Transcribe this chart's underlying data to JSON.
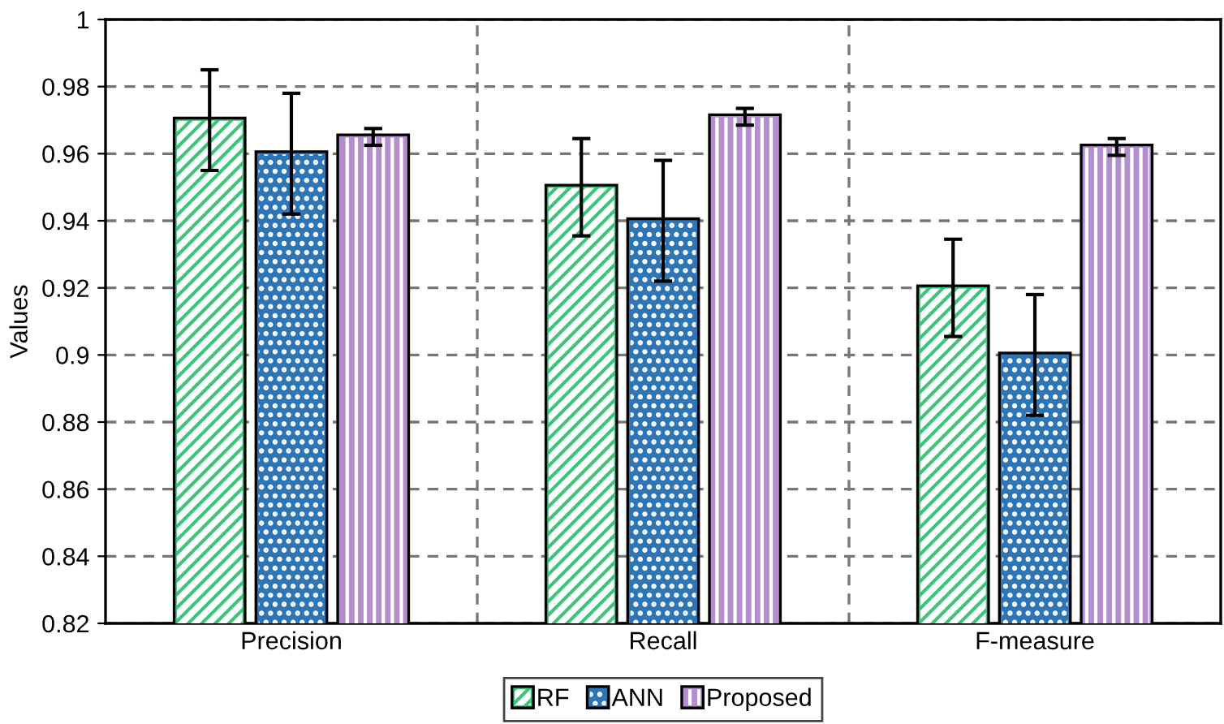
{
  "chart_data": {
    "type": "bar",
    "ylabel": "Values",
    "categories": [
      "Precision",
      "Recall",
      "F-measure"
    ],
    "series": [
      {
        "name": "RF",
        "color": "#3cc47a",
        "values": [
          0.97,
          0.95,
          0.92
        ],
        "errors": [
          0.015,
          0.0145,
          0.0145
        ]
      },
      {
        "name": "ANN",
        "color": "#2e75b6",
        "values": [
          0.96,
          0.94,
          0.9
        ],
        "errors": [
          0.018,
          0.018,
          0.018
        ]
      },
      {
        "name": "Proposed",
        "color": "#b48fd0",
        "values": [
          0.965,
          0.971,
          0.962
        ],
        "errors": [
          0.0025,
          0.0025,
          0.0025
        ]
      }
    ],
    "ylim": [
      0.82,
      1
    ],
    "yticks": [
      0.82,
      0.84,
      0.86,
      0.88,
      0.9,
      0.92,
      0.94,
      0.96,
      0.98,
      1
    ],
    "grid": true,
    "legend": "bottom"
  }
}
